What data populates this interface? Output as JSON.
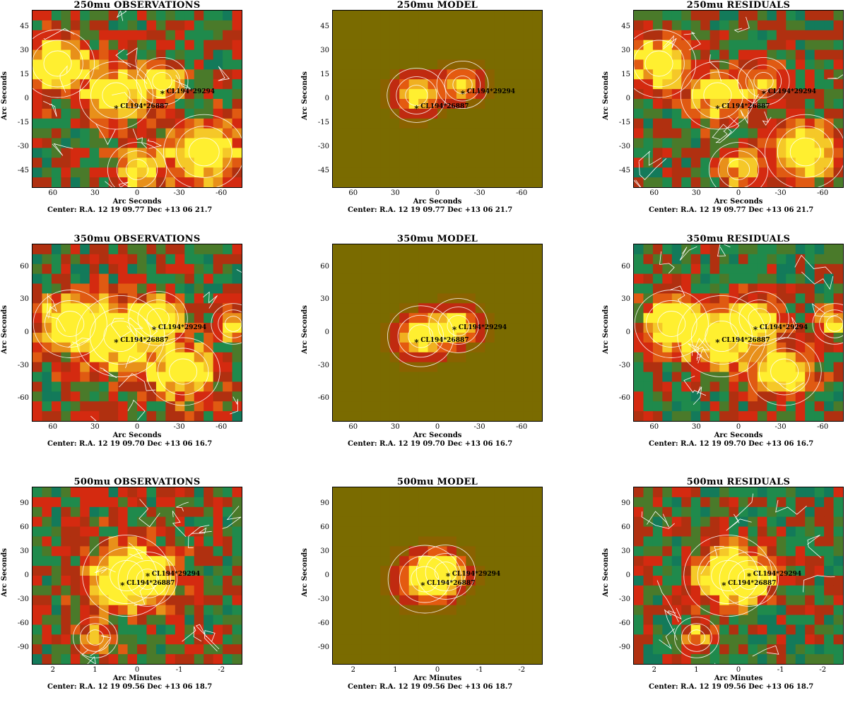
{
  "panels": [
    {
      "title": "250mu OBSERVATIONS",
      "kind": "obs",
      "yticks": [
        "45",
        "30",
        "15",
        "0",
        "-15",
        "-30",
        "-45"
      ],
      "xticks": [
        "60",
        "30",
        "0",
        "-30",
        "-60"
      ],
      "xlabel": "Arc Seconds",
      "ylabel": "Arc Seconds",
      "center": "Center:  R.A. 12 19 09.77     Dec   +13 06 21.7"
    },
    {
      "title": "250mu MODEL",
      "kind": "model",
      "yticks": [
        "45",
        "30",
        "15",
        "0",
        "-15",
        "-30",
        "-45"
      ],
      "xticks": [
        "60",
        "30",
        "0",
        "-30",
        "-60"
      ],
      "xlabel": "Arc Seconds",
      "ylabel": "Arc Seconds",
      "center": "Center:  R.A. 12 19 09.77     Dec   +13 06 21.7"
    },
    {
      "title": "250mu RESIDUALS",
      "kind": "res",
      "yticks": [
        "45",
        "30",
        "15",
        "0",
        "-15",
        "-30",
        "-45"
      ],
      "xticks": [
        "60",
        "30",
        "0",
        "-30",
        "-60"
      ],
      "xlabel": "Arc Seconds",
      "ylabel": "Arc Seconds",
      "center": "Center:  R.A. 12 19 09.77     Dec   +13 06 21.7"
    },
    {
      "title": "350mu OBSERVATIONS",
      "kind": "obs",
      "yticks": [
        "60",
        "30",
        "0",
        "-30",
        "-60"
      ],
      "xticks": [
        "60",
        "30",
        "0",
        "-30",
        "-60"
      ],
      "xlabel": "Arc Seconds",
      "ylabel": "Arc Seconds",
      "center": "Center:  R.A. 12 19 09.70     Dec   +13 06 16.7"
    },
    {
      "title": "350mu MODEL",
      "kind": "model",
      "yticks": [
        "60",
        "30",
        "0",
        "-30",
        "-60"
      ],
      "xticks": [
        "60",
        "30",
        "0",
        "-30",
        "-60"
      ],
      "xlabel": "Arc Seconds",
      "ylabel": "Arc Seconds",
      "center": "Center:  R.A. 12 19 09.70     Dec   +13 06 16.7"
    },
    {
      "title": "350mu RESIDUALS",
      "kind": "res",
      "yticks": [
        "60",
        "30",
        "0",
        "-30",
        "-60"
      ],
      "xticks": [
        "60",
        "30",
        "0",
        "-30",
        "-60"
      ],
      "xlabel": "Arc Seconds",
      "ylabel": "Arc Seconds",
      "center": "Center:  R.A. 12 19 09.70     Dec   +13 06 16.7"
    },
    {
      "title": "500mu OBSERVATIONS",
      "kind": "obs",
      "yticks": [
        "90",
        "60",
        "30",
        "0",
        "-30",
        "-60",
        "-90"
      ],
      "xticks": [
        "2",
        "1",
        "0",
        "-1",
        "-2"
      ],
      "xlabel": "Arc Minutes",
      "ylabel": "Arc Seconds",
      "center": "Center:  R.A. 12 19 09.56     Dec   +13 06 18.7"
    },
    {
      "title": "500mu MODEL",
      "kind": "model",
      "yticks": [
        "90",
        "60",
        "30",
        "0",
        "-30",
        "-60",
        "-90"
      ],
      "xticks": [
        "2",
        "1",
        "0",
        "-1",
        "-2"
      ],
      "xlabel": "Arc Minutes",
      "ylabel": "Arc Seconds",
      "center": "Center:  R.A. 12 19 09.56     Dec   +13 06 18.7"
    },
    {
      "title": "500mu RESIDUALS",
      "kind": "res",
      "yticks": [
        "90",
        "60",
        "30",
        "0",
        "-30",
        "-60",
        "-90"
      ],
      "xticks": [
        "2",
        "1",
        "0",
        "-1",
        "-2"
      ],
      "xlabel": "Arc Minutes",
      "ylabel": "Arc Seconds",
      "center": "Center:  R.A. 12 19 09.56     Dec   +13 06 18.7"
    }
  ],
  "sources": {
    "a": "CL194*26887",
    "b": "CL194*29294",
    "marker": "*"
  },
  "colors": {
    "model_bg": "#7a6b00",
    "green": "#1f8a4c",
    "red": "#d42a10",
    "orange": "#e07a10",
    "yellow": "#ffef30",
    "contour": "#ffffff"
  }
}
